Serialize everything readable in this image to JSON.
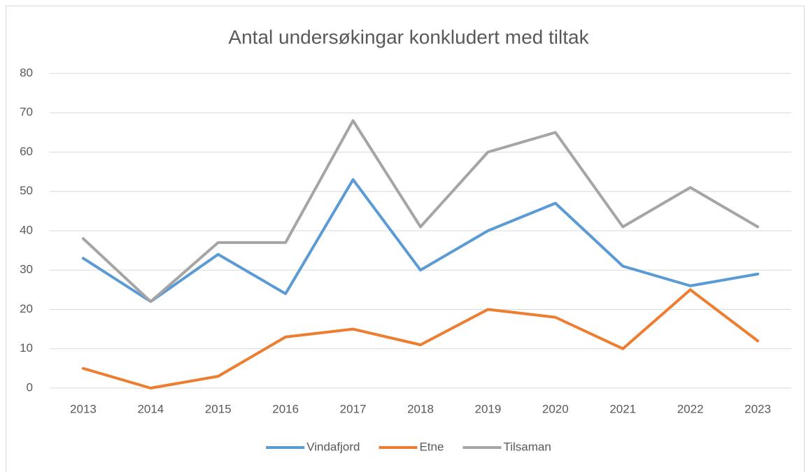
{
  "chart_data": {
    "type": "line",
    "title": "Antal undersøkingar konkludert med tiltak",
    "categories": [
      "2013",
      "2014",
      "2015",
      "2016",
      "2017",
      "2018",
      "2019",
      "2020",
      "2021",
      "2022",
      "2023"
    ],
    "series": [
      {
        "name": "Vindafjord",
        "color": "#5b9bd5",
        "values": [
          33,
          22,
          34,
          24,
          53,
          30,
          40,
          47,
          31,
          26,
          29
        ]
      },
      {
        "name": "Etne",
        "color": "#ed7d31",
        "values": [
          5,
          0,
          3,
          13,
          15,
          11,
          20,
          18,
          10,
          25,
          12
        ]
      },
      {
        "name": "Tilsaman",
        "color": "#a5a5a5",
        "values": [
          38,
          22,
          37,
          37,
          68,
          41,
          60,
          65,
          41,
          51,
          41
        ]
      }
    ],
    "ylim": [
      0,
      80
    ],
    "yticks": [
      0,
      10,
      20,
      30,
      40,
      50,
      60,
      70,
      80
    ],
    "grid": true,
    "legend": "bottom"
  }
}
